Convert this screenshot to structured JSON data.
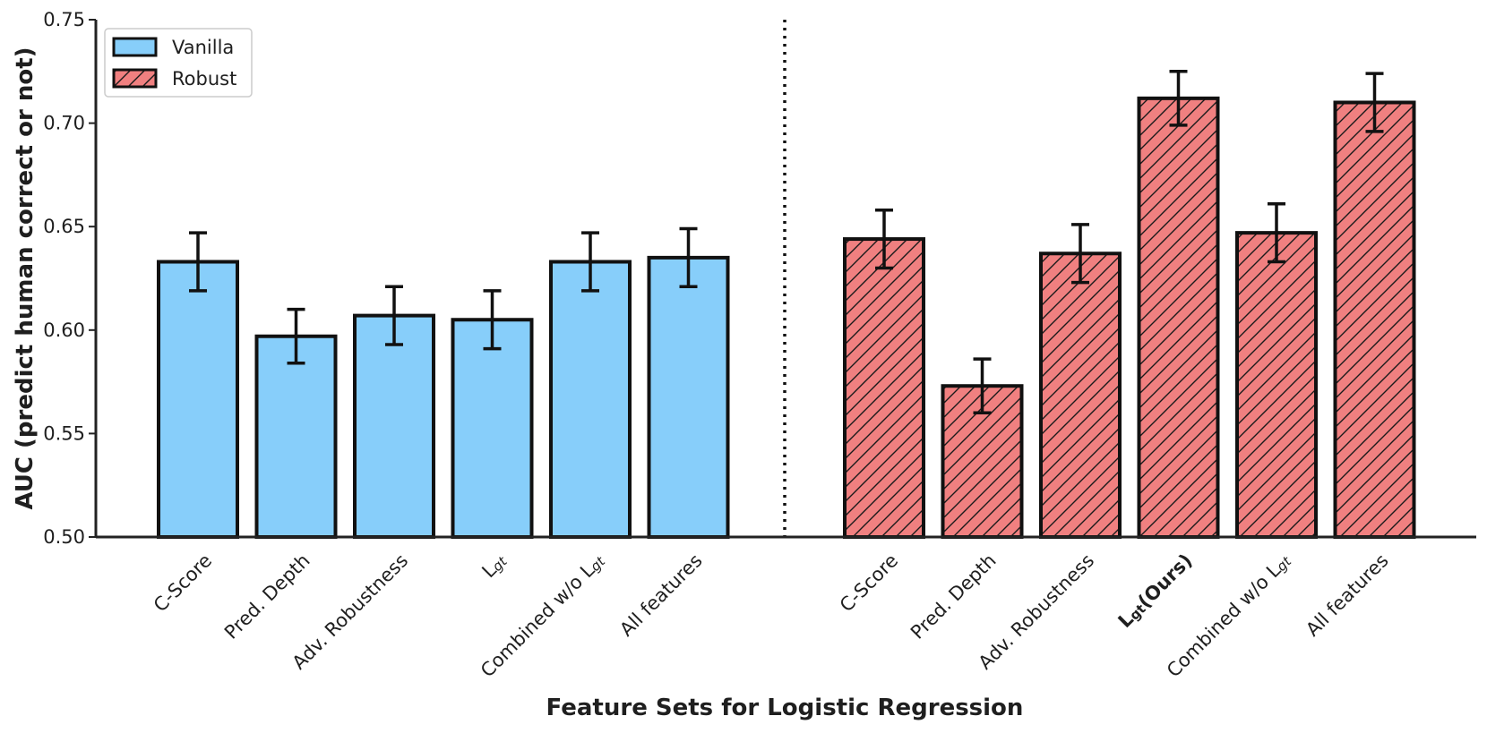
{
  "chart_data": {
    "type": "bar",
    "title": "",
    "xlabel": "Feature Sets for Logistic Regression",
    "ylabel": "AUC (predict human correct or not)",
    "ylim": [
      0.5,
      0.75
    ],
    "yticks": [
      0.5,
      0.55,
      0.6,
      0.65,
      0.7,
      0.75
    ],
    "grid": false,
    "legend_position": "top-left",
    "separator": "dotted vertical line between groups",
    "series": [
      {
        "name": "Vanilla",
        "color": "#87CEFA",
        "hatch": false,
        "categories": [
          {
            "text": "C-Score",
            "sub": ""
          },
          {
            "text": "Pred. Depth",
            "sub": ""
          },
          {
            "text": "Adv. Robustness",
            "sub": ""
          },
          {
            "text": "L",
            "sub": "gt"
          },
          {
            "text": "Combined w/o L",
            "sub": "gt"
          },
          {
            "text": "All features",
            "sub": ""
          }
        ],
        "values": [
          0.633,
          0.597,
          0.607,
          0.605,
          0.633,
          0.635
        ],
        "errors": [
          0.014,
          0.013,
          0.014,
          0.014,
          0.014,
          0.014
        ]
      },
      {
        "name": "Robust",
        "color": "#F08080",
        "hatch": true,
        "categories": [
          {
            "text": "C-Score",
            "sub": ""
          },
          {
            "text": "Pred. Depth",
            "sub": ""
          },
          {
            "text": "Adv. Robustness",
            "sub": ""
          },
          {
            "text": "L",
            "sub": "gt",
            "suffix": "(Ours)",
            "bold": true
          },
          {
            "text": "Combined w/o L",
            "sub": "gt"
          },
          {
            "text": "All features",
            "sub": ""
          }
        ],
        "values": [
          0.644,
          0.573,
          0.637,
          0.712,
          0.647,
          0.71
        ],
        "errors": [
          0.014,
          0.013,
          0.014,
          0.013,
          0.014,
          0.014
        ]
      }
    ]
  }
}
